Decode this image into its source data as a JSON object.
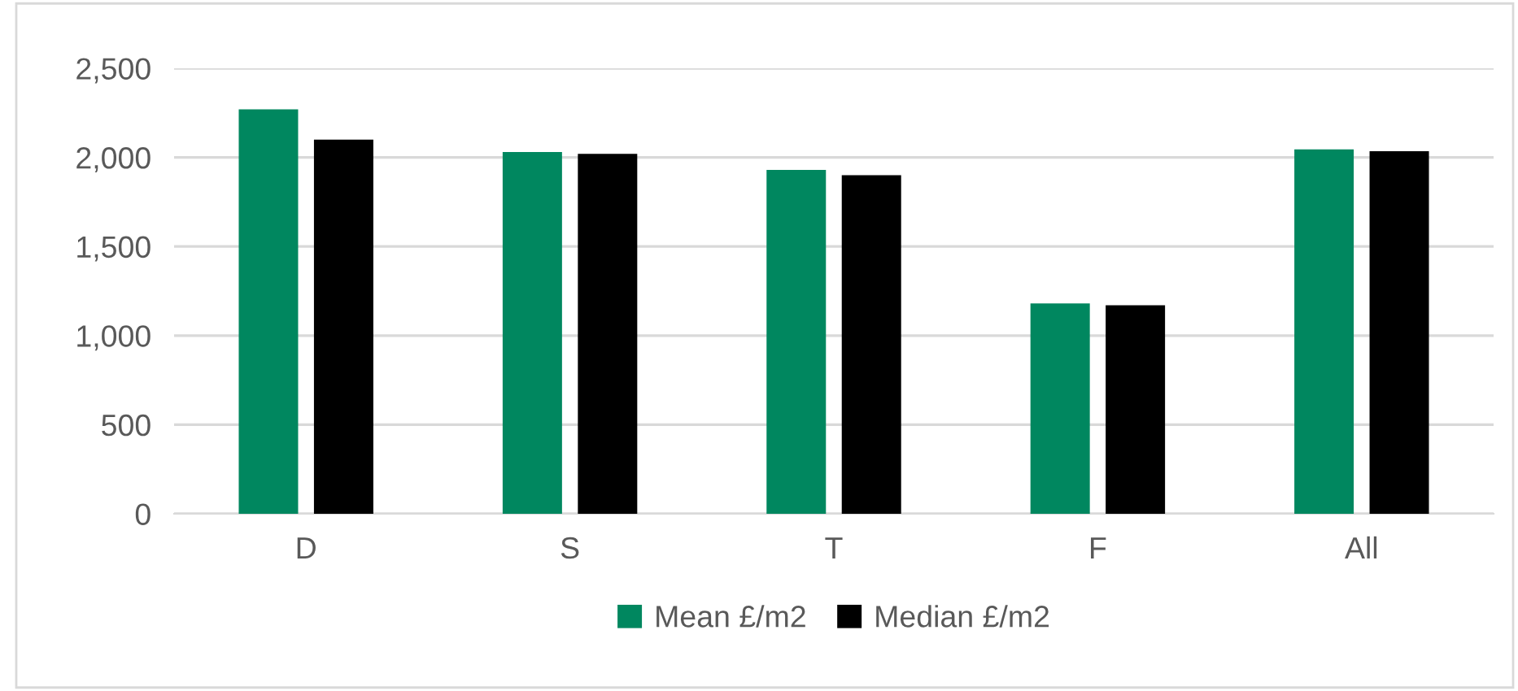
{
  "chart_data": {
    "type": "bar",
    "categories": [
      "D",
      "S",
      "T",
      "F",
      "All"
    ],
    "series": [
      {
        "name": "Mean £/m2",
        "color": "#00875f",
        "values": [
          2270,
          2030,
          1930,
          1180,
          2045
        ]
      },
      {
        "name": "Median £/m2",
        "color": "#000000",
        "values": [
          2100,
          2020,
          1900,
          1170,
          2035
        ]
      }
    ],
    "ylim": [
      0,
      2500
    ],
    "yticks": [
      0,
      {
        "value": 500,
        "label": "500"
      },
      {
        "value": 1000,
        "label": "1,000"
      },
      {
        "value": 1500,
        "label": "1,500"
      },
      {
        "value": 2000,
        "label": "2,000"
      },
      {
        "value": 2500,
        "label": "2,500"
      }
    ],
    "grid": "y",
    "legend": "bottom"
  }
}
